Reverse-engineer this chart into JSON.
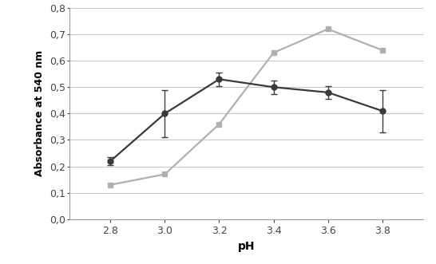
{
  "x": [
    2.8,
    3.0,
    3.2,
    3.4,
    3.6,
    3.8
  ],
  "dark_y": [
    0.22,
    0.4,
    0.53,
    0.5,
    0.48,
    0.41
  ],
  "dark_yerr": [
    0.015,
    0.09,
    0.025,
    0.025,
    0.025,
    0.08
  ],
  "light_y": [
    0.13,
    0.17,
    0.36,
    0.63,
    0.72,
    0.64
  ],
  "dark_color": "#3a3a3a",
  "light_color": "#b0b0b0",
  "marker_dark": "o",
  "marker_light": "s",
  "marker_size": 5,
  "linewidth": 1.6,
  "xlabel": "pH",
  "ylabel": "Absorbance at 540 nm",
  "xlim": [
    2.65,
    3.95
  ],
  "ylim": [
    0.0,
    0.8
  ],
  "yticks": [
    0.0,
    0.1,
    0.2,
    0.3,
    0.4,
    0.5,
    0.6,
    0.7,
    0.8
  ],
  "ytick_labels": [
    "0,0",
    "0,1",
    "0,2",
    "0,3",
    "0,4",
    "0,5",
    "0,6",
    "0,7",
    "0,8"
  ],
  "xticks": [
    2.8,
    3.0,
    3.2,
    3.4,
    3.6,
    3.8
  ],
  "background_color": "#ffffff",
  "grid_color": "#c8c8c8"
}
